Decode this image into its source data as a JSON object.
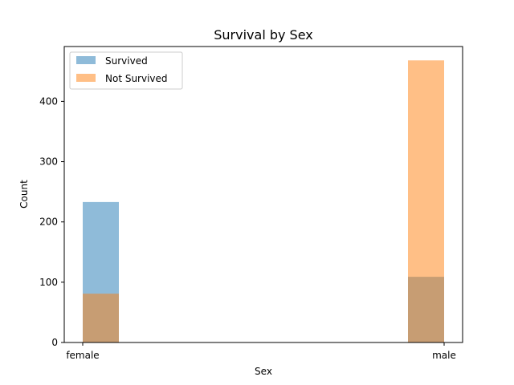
{
  "chart_data": {
    "type": "bar",
    "title": "Survival by Sex",
    "xlabel": "Sex",
    "ylabel": "Count",
    "categories": [
      "female",
      "male"
    ],
    "series": [
      {
        "name": "Survived",
        "values": [
          233,
          109
        ],
        "color": "#1f77b4",
        "opacity": 0.5
      },
      {
        "name": "Not Survived",
        "values": [
          81,
          468
        ],
        "color": "#ff7f0e",
        "opacity": 0.5
      }
    ],
    "ylim": [
      0,
      491
    ],
    "yticks": [
      0,
      100,
      200,
      300,
      400
    ],
    "grid": false,
    "legend": "top-left"
  }
}
